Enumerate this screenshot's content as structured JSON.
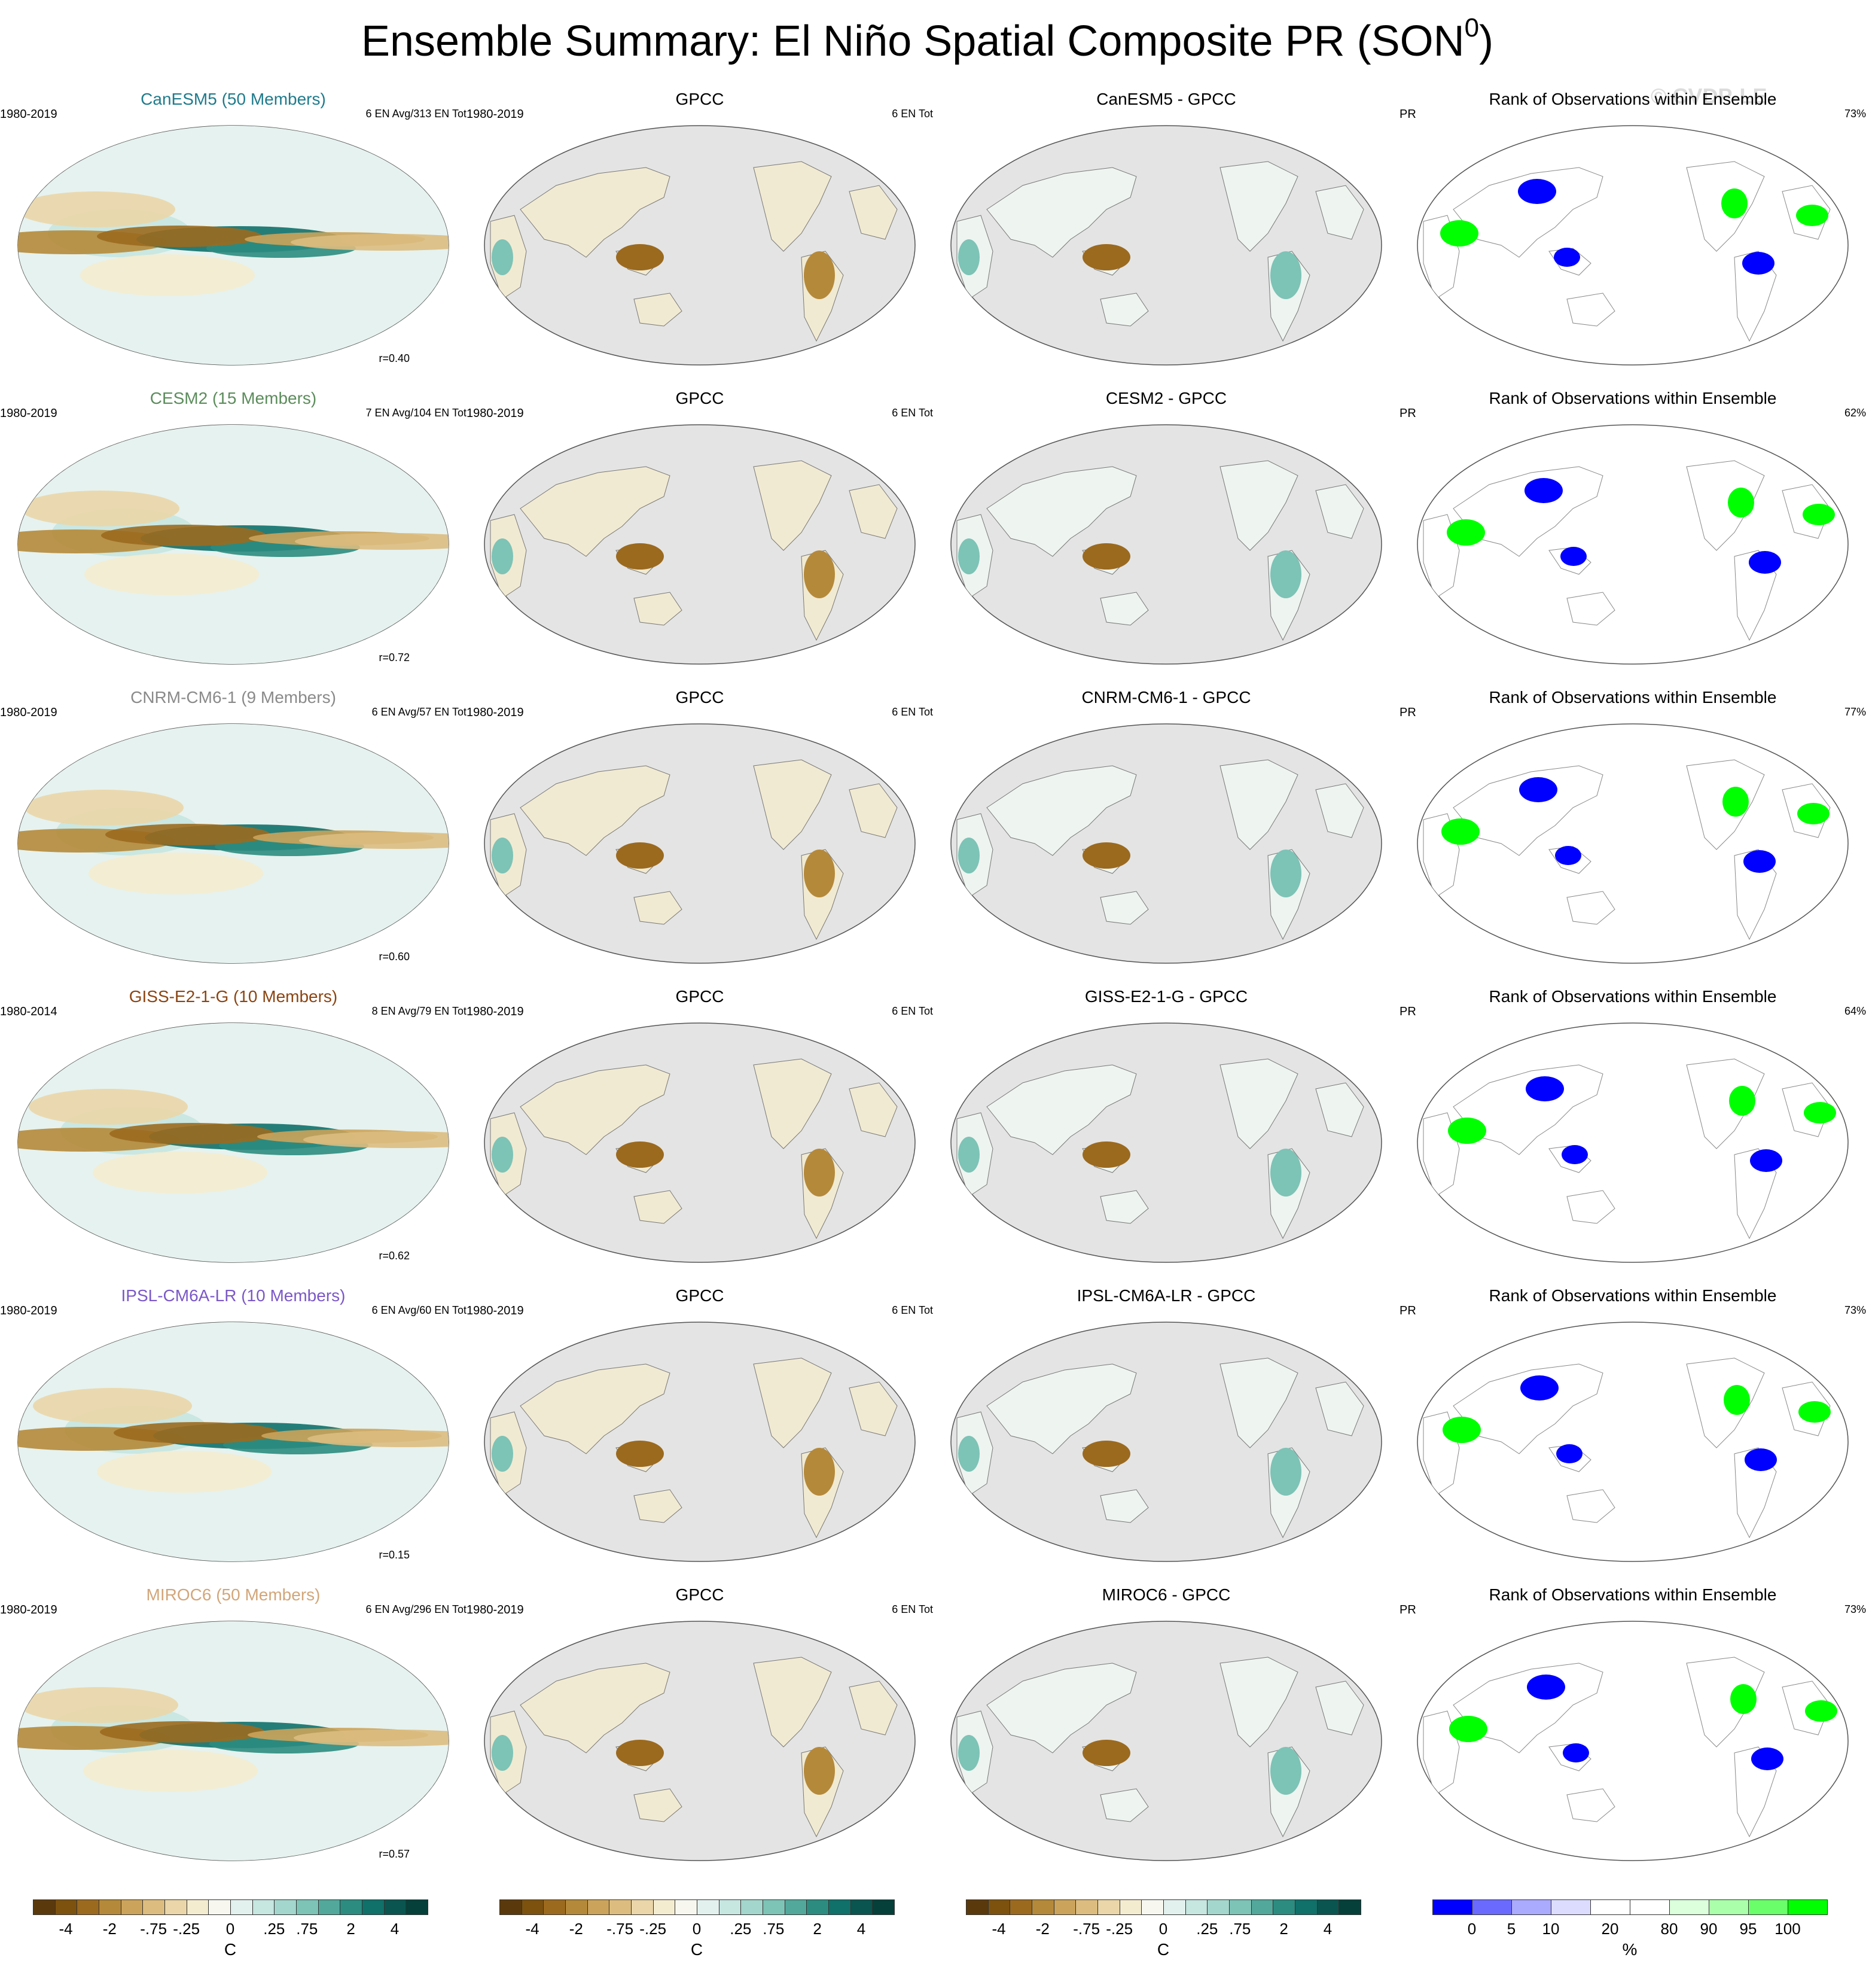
{
  "title": "Ensemble Summary: El Niño Spatial Composite PR (SON",
  "title_sup": "0",
  "title_close": ")",
  "watermark": "© CVDP-LE",
  "rows": [
    {
      "model_title": "CanESM5 (50 Members)",
      "model_color": "#1f7b8c",
      "years": "1980-2019",
      "en_info": "6 EN Avg/313 EN Tot",
      "corr": "r=0.40",
      "diff_title": "CanESM5 - GPCC",
      "rank_pct": "73%",
      "obs_years": "1980-2019",
      "obs_en": "6 EN Tot"
    },
    {
      "model_title": "CESM2 (15 Members)",
      "model_color": "#5c8c5c",
      "years": "1980-2019",
      "en_info": "7 EN Avg/104 EN Tot",
      "corr": "r=0.72",
      "diff_title": "CESM2 - GPCC",
      "rank_pct": "62%",
      "obs_years": "1980-2019",
      "obs_en": "6 EN Tot"
    },
    {
      "model_title": "CNRM-CM6-1 (9 Members)",
      "model_color": "#8a8a8a",
      "years": "1980-2019",
      "en_info": "6 EN Avg/57 EN Tot",
      "corr": "r=0.60",
      "diff_title": "CNRM-CM6-1 - GPCC",
      "rank_pct": "77%",
      "obs_years": "1980-2019",
      "obs_en": "6 EN Tot"
    },
    {
      "model_title": "GISS-E2-1-G (10 Members)",
      "model_color": "#8b4513",
      "years": "1980-2014",
      "en_info": "8 EN Avg/79 EN Tot",
      "corr": "r=0.62",
      "diff_title": "GISS-E2-1-G - GPCC",
      "rank_pct": "64%",
      "obs_years": "1980-2019",
      "obs_en": "6 EN Tot"
    },
    {
      "model_title": "IPSL-CM6A-LR (10 Members)",
      "model_color": "#7b58c8",
      "years": "1980-2019",
      "en_info": "6 EN Avg/60 EN Tot",
      "corr": "r=0.15",
      "diff_title": "IPSL-CM6A-LR - GPCC",
      "rank_pct": "73%",
      "obs_years": "1980-2019",
      "obs_en": "6 EN Tot"
    },
    {
      "model_title": "MIROC6 (50 Members)",
      "model_color": "#d2a679",
      "years": "1980-2019",
      "en_info": "6 EN Avg/296 EN Tot",
      "corr": "r=0.57",
      "diff_title": "MIROC6 - GPCC",
      "rank_pct": "73%",
      "obs_years": "1980-2019",
      "obs_en": "6 EN Tot"
    }
  ],
  "obs_title": "GPCC",
  "rank_title": "Rank of Observations within Ensemble",
  "rank_var": "PR",
  "colorbar_c": {
    "colors": [
      "#5a3a0c",
      "#7d520f",
      "#9b6a1f",
      "#b5893a",
      "#cba35a",
      "#dcbd7f",
      "#ead6a8",
      "#f4eccf",
      "#f7f7f0",
      "#e3f1ee",
      "#c6e6e0",
      "#a3d6cc",
      "#7dc3b6",
      "#52a89b",
      "#2c8c80",
      "#10706a",
      "#0a5550",
      "#05403a"
    ],
    "labels": [
      "-4",
      "-2",
      "-.75",
      "-.25",
      "0",
      ".25",
      ".75",
      "2",
      "4"
    ],
    "unit": "C"
  },
  "colorbar_pct": {
    "colors": [
      "#0000ff",
      "#6a6aff",
      "#aaaaff",
      "#dcdcff",
      "#ffffff",
      "#ffffff",
      "#dcffdc",
      "#aaffaa",
      "#6aff6a",
      "#00ff00"
    ],
    "labels": [
      "0",
      "5",
      "10",
      "20",
      "80",
      "90",
      "95",
      "100"
    ],
    "unit": "%"
  }
}
